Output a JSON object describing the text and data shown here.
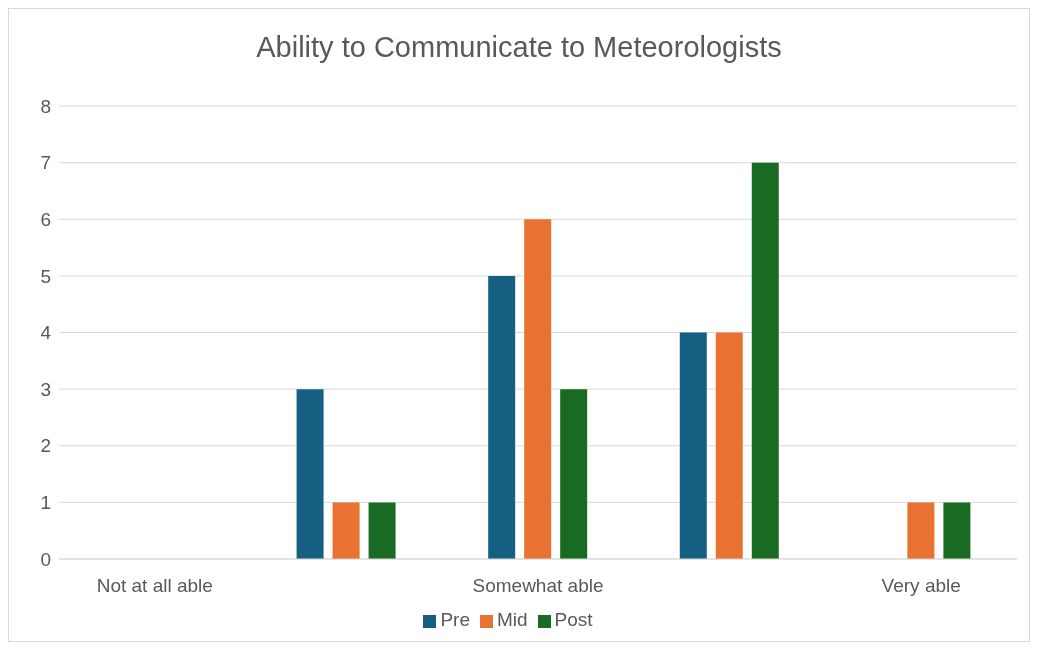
{
  "chart_data": {
    "type": "bar",
    "title": "Ability to Communicate to Meteorologists",
    "categories": [
      "Not at all able",
      null,
      "Somewhat able",
      null,
      "Very able"
    ],
    "series": [
      {
        "name": "Pre",
        "color": "#156082",
        "values": [
          0,
          3,
          5,
          4,
          0
        ]
      },
      {
        "name": "Mid",
        "color": "#e97132",
        "values": [
          0,
          1,
          6,
          4,
          1
        ]
      },
      {
        "name": "Post",
        "color": "#196b24",
        "values": [
          0,
          1,
          3,
          7,
          1
        ]
      }
    ],
    "ylim": [
      0,
      8
    ],
    "yticks": [
      0,
      1,
      2,
      3,
      4,
      5,
      6,
      7,
      8
    ],
    "grid": "y",
    "legend": "bottom"
  }
}
